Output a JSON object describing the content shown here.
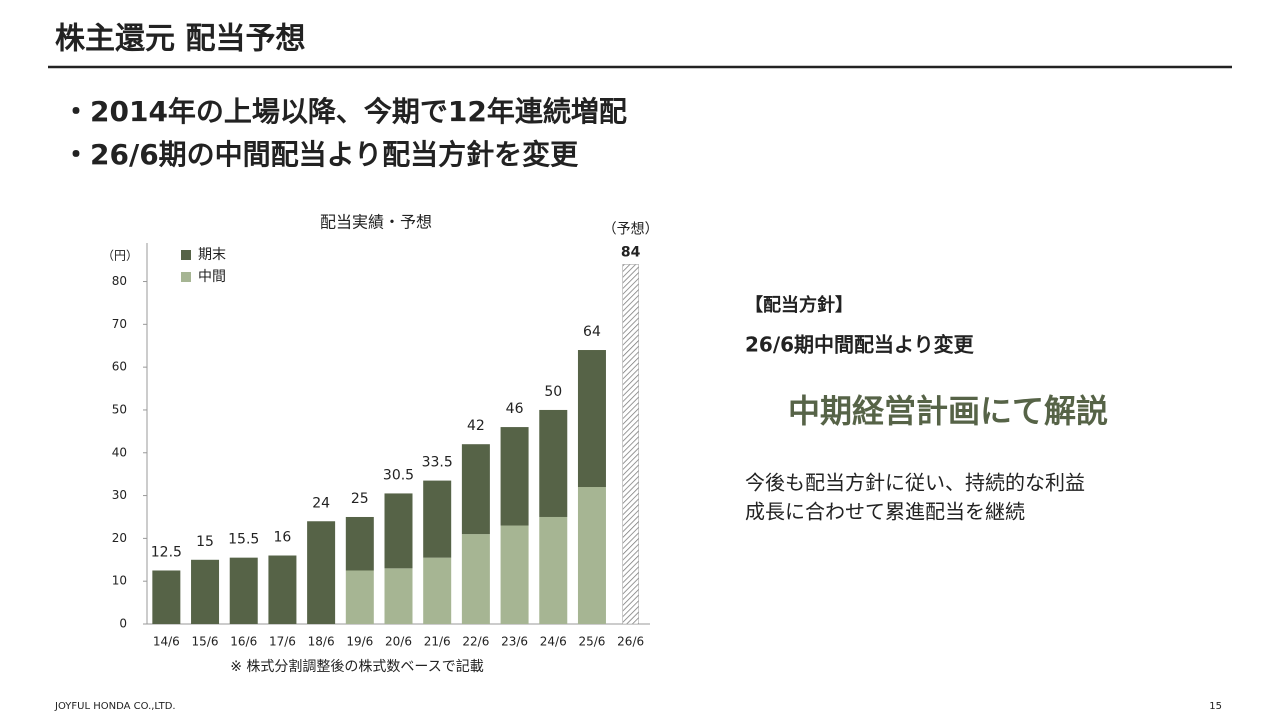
{
  "header": {
    "title": "株主還元 配当予想"
  },
  "bullets": [
    "・2014年の上場以降、今期で12年連続増配",
    "・26/6期の中間配当より配当方針を変更"
  ],
  "chart_data": {
    "type": "stacked-bar",
    "title": "配当実績・予想",
    "y_unit": "（円）",
    "categories": [
      "14/6",
      "15/6",
      "16/6",
      "17/6",
      "18/6",
      "19/6",
      "20/6",
      "21/6",
      "22/6",
      "23/6",
      "24/6",
      "25/6",
      "26/6"
    ],
    "series": [
      {
        "name": "中間",
        "color": "#a6b593",
        "values": [
          0,
          0,
          0,
          0,
          0,
          12.5,
          13,
          15.5,
          21,
          23,
          25,
          32,
          null
        ]
      },
      {
        "name": "期末",
        "color": "#566347",
        "values": [
          12.5,
          15,
          15.5,
          16,
          24,
          12.5,
          17.5,
          18,
          21,
          23,
          25,
          32,
          null
        ]
      }
    ],
    "total_labels": [
      "12.5",
      "15",
      "15.5",
      "16",
      "24",
      "25",
      "30.5",
      "33.5",
      "42",
      "46",
      "50",
      "64"
    ],
    "forecast_series": {
      "name": "（予想）",
      "values": [
        null,
        null,
        null,
        null,
        null,
        null,
        null,
        null,
        null,
        null,
        null,
        null,
        84
      ]
    },
    "ylim": [
      0,
      89
    ],
    "yticks": [
      0,
      10,
      20,
      30,
      40,
      50,
      60,
      70,
      80
    ],
    "note": "※ 株式分割調整後の株式数ベースで記載"
  },
  "policy": {
    "heading": "【配当方針】",
    "change": "26/6期中間配当より変更",
    "highlight": "中期経営計画にて解説",
    "body": [
      "今後も配当方針に従い、持続的な利益",
      "成長に合わせて累進配当を継続"
    ]
  },
  "footer": {
    "company": "JOYFUL HONDA CO.,LTD.",
    "page": "15"
  }
}
